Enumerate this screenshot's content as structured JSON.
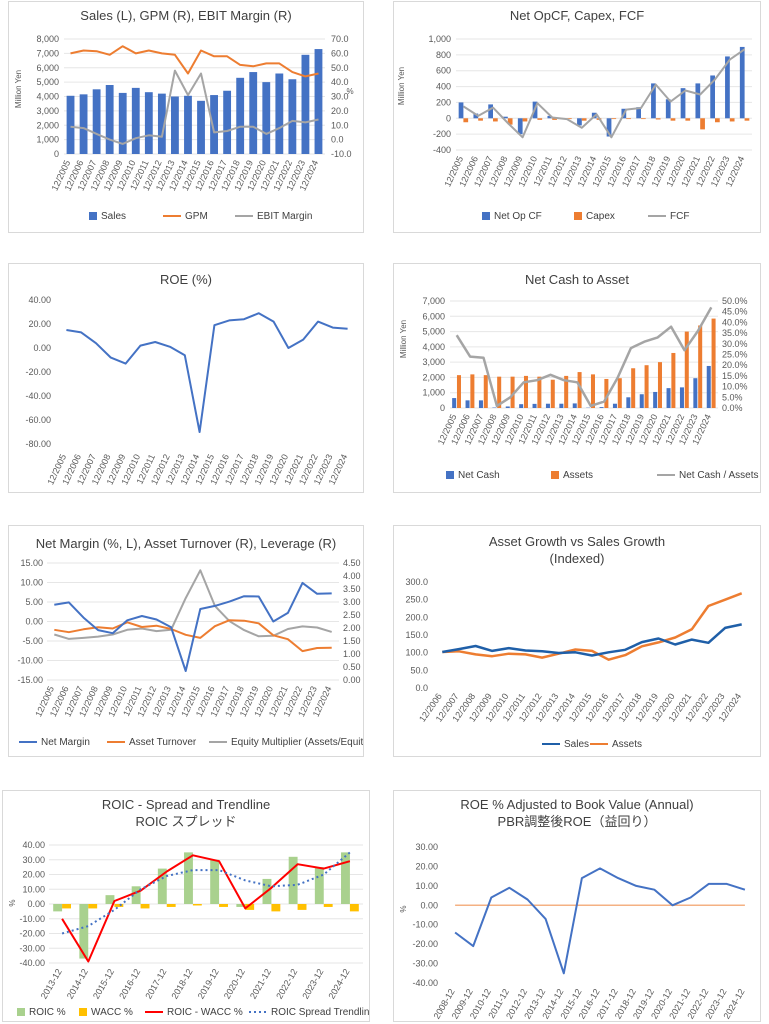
{
  "charts": {
    "sales": {
      "title": "Sales (L), GPM (R), EBIT Margin (R)",
      "ylabel": "Million Yen",
      "y2label": "%",
      "yticks": [
        "0",
        "1,000",
        "2,000",
        "3,000",
        "4,000",
        "5,000",
        "6,000",
        "7,000",
        "8,000"
      ],
      "y2ticks": [
        "-10.0",
        "0.0",
        "10.0",
        "20.0",
        "30.0",
        "40.0",
        "50.0",
        "60.0",
        "70.0"
      ],
      "legend": [
        "Sales",
        "GPM",
        "EBIT Margin"
      ]
    },
    "cf": {
      "title": "Net OpCF, Capex, FCF",
      "ylabel": "Million Yen",
      "yticks": [
        "-400",
        "-200",
        "0",
        "200",
        "400",
        "600",
        "800",
        "1,000"
      ],
      "legend": [
        "Net Op CF",
        "Capex",
        "FCF"
      ]
    },
    "roe": {
      "title": "ROE (%)",
      "yticks": [
        "-80.00",
        "-60.00",
        "-40.00",
        "-20.00",
        "0.00",
        "20.00",
        "40.00"
      ]
    },
    "cash": {
      "title": "Net Cash to Asset",
      "ylabel": "Million Yen",
      "yticks": [
        "0",
        "1,000",
        "2,000",
        "3,000",
        "4,000",
        "5,000",
        "6,000",
        "7,000"
      ],
      "y2ticks": [
        "0.0%",
        "5.0%",
        "10.0%",
        "15.0%",
        "20.0%",
        "25.0%",
        "30.0%",
        "35.0%",
        "40.0%",
        "45.0%",
        "50.0%"
      ],
      "legend": [
        "Net Cash",
        "Assets",
        "Net Cash / Assets"
      ]
    },
    "dupont": {
      "title": "Net Margin (%, L), Asset Turnover (R), Leverage (R)",
      "yticks": [
        "-15.00",
        "-10.00",
        "-5.00",
        "0.00",
        "5.00",
        "10.00",
        "15.00"
      ],
      "y2ticks": [
        "0.00",
        "0.50",
        "1.00",
        "1.50",
        "2.00",
        "2.50",
        "3.00",
        "3.50",
        "4.00",
        "4.50"
      ],
      "legend": [
        "Net Margin",
        "Asset Turnover",
        "Equity Multiplier (Assets/Equity)"
      ]
    },
    "growth": {
      "title": "Asset Growth vs Sales Growth",
      "subtitle": "(Indexed)",
      "yticks": [
        "0.0",
        "50.0",
        "100.0",
        "150.0",
        "200.0",
        "250.0",
        "300.0"
      ],
      "legend": [
        "Sales",
        "Assets"
      ]
    },
    "roic": {
      "title": "ROIC - Spread and Trendline",
      "subtitle": "ROIC スプレッド",
      "ylabel": "%",
      "yticks": [
        "-40.00",
        "-30.00",
        "-20.00",
        "-10.00",
        "0.00",
        "10.00",
        "20.00",
        "30.00",
        "40.00"
      ],
      "legend": [
        "ROIC %",
        "WACC %",
        "ROIC - WACC %",
        "ROIC Spread Trendline"
      ]
    },
    "pbr": {
      "title": "ROE % Adjusted to Book Value (Annual)",
      "subtitle": "PBR調整後ROE（益回り）",
      "ylabel": "%",
      "yticks": [
        "-40.00",
        "-30.00",
        "-20.00",
        "-10.00",
        "0.00",
        "10.00",
        "20.00",
        "30.00"
      ]
    }
  },
  "chart_data": [
    {
      "type": "bar",
      "id": "sales",
      "categories": [
        "12/2005",
        "12/2006",
        "12/2007",
        "12/2008",
        "12/2009",
        "12/2010",
        "12/2011",
        "12/2012",
        "12/2013",
        "12/2014",
        "12/2015",
        "12/2016",
        "12/2017",
        "12/2018",
        "12/2019",
        "12/2020",
        "12/2021",
        "12/2022",
        "12/2023",
        "12/2024"
      ],
      "series": [
        {
          "name": "Sales",
          "axis": "left",
          "kind": "bar",
          "values": [
            4050,
            4150,
            4500,
            4800,
            4250,
            4600,
            4300,
            4200,
            4000,
            4050,
            3700,
            4100,
            4400,
            5300,
            5700,
            5000,
            5600,
            5200,
            6900,
            7300
          ]
        },
        {
          "name": "GPM",
          "axis": "right",
          "kind": "line",
          "values": [
            60,
            62,
            61.5,
            59,
            65,
            60,
            62,
            60,
            59,
            46,
            62,
            58,
            58,
            52,
            51,
            53,
            53,
            47,
            44,
            46
          ]
        },
        {
          "name": "EBIT Margin",
          "axis": "right",
          "kind": "line",
          "values": [
            9,
            8,
            4,
            0,
            -3,
            1,
            3,
            2,
            48,
            31,
            46,
            5,
            6,
            9,
            9,
            4,
            8,
            13,
            12,
            14
          ]
        }
      ],
      "ylim": [
        0,
        8000
      ],
      "y2lim": [
        -10,
        70
      ]
    },
    {
      "type": "bar",
      "id": "cf",
      "categories": [
        "12/2005",
        "12/2006",
        "12/2007",
        "12/2008",
        "12/2009",
        "12/2010",
        "12/2011",
        "12/2012",
        "12/2013",
        "12/2014",
        "12/2015",
        "12/2016",
        "12/2017",
        "12/2018",
        "12/2019",
        "12/2020",
        "12/2021",
        "12/2022",
        "12/2023",
        "12/2024"
      ],
      "series": [
        {
          "name": "Net Op CF",
          "kind": "bar",
          "values": [
            200,
            60,
            175,
            20,
            -200,
            210,
            30,
            0,
            -90,
            70,
            -230,
            120,
            140,
            440,
            240,
            380,
            440,
            540,
            780,
            900
          ]
        },
        {
          "name": "Capex",
          "kind": "bar",
          "values": [
            -50,
            -30,
            -40,
            -80,
            -40,
            -20,
            -20,
            -10,
            -30,
            -20,
            -10,
            -10,
            -10,
            -15,
            -30,
            -30,
            -140,
            -50,
            -40,
            -30
          ]
        },
        {
          "name": "FCF",
          "kind": "line",
          "values": [
            150,
            30,
            135,
            -60,
            -240,
            190,
            10,
            -10,
            -120,
            50,
            -240,
            110,
            130,
            425,
            210,
            350,
            300,
            490,
            740,
            870
          ]
        }
      ],
      "ylim": [
        -400,
        1000
      ]
    },
    {
      "type": "line",
      "id": "roe",
      "categories": [
        "12/2005",
        "12/2006",
        "12/2007",
        "12/2008",
        "12/2009",
        "12/2010",
        "12/2011",
        "12/2012",
        "12/2013",
        "12/2014",
        "12/2015",
        "12/2016",
        "12/2017",
        "12/2018",
        "12/2019",
        "12/2020",
        "12/2021",
        "12/2022",
        "12/2023",
        "12/2024"
      ],
      "series": [
        {
          "name": "ROE",
          "values": [
            15,
            13,
            4,
            -8,
            -13,
            2,
            5,
            1,
            -6,
            -70,
            19,
            23,
            24,
            29,
            22,
            0,
            7,
            22,
            17,
            16
          ]
        }
      ],
      "ylim": [
        -80,
        40
      ]
    },
    {
      "type": "bar",
      "id": "cash",
      "categories": [
        "12/2005",
        "12/2006",
        "12/2007",
        "12/2008",
        "12/2009",
        "12/2010",
        "12/2011",
        "12/2012",
        "12/2013",
        "12/2014",
        "12/2015",
        "12/2016",
        "12/2017",
        "12/2018",
        "12/2019",
        "12/2020",
        "12/2021",
        "12/2022",
        "12/2023",
        "12/2024"
      ],
      "series": [
        {
          "name": "Net Cash",
          "axis": "left",
          "kind": "bar",
          "values": [
            650,
            500,
            500,
            30,
            100,
            250,
            270,
            280,
            280,
            300,
            20,
            60,
            280,
            700,
            900,
            1050,
            1300,
            1350,
            1950,
            2750
          ]
        },
        {
          "name": "Assets",
          "axis": "left",
          "kind": "bar",
          "values": [
            2150,
            2200,
            2150,
            2050,
            2050,
            2100,
            2050,
            1850,
            2100,
            2350,
            2200,
            1900,
            1950,
            2600,
            2800,
            3000,
            3600,
            5000,
            5400,
            5850
          ]
        },
        {
          "name": "Net Cash / Assets",
          "axis": "right",
          "kind": "line",
          "values": [
            34,
            24,
            23.5,
            1,
            5,
            12,
            13,
            15.5,
            13,
            12,
            1,
            3,
            14,
            28,
            31,
            33,
            38,
            27,
            36,
            47
          ]
        }
      ],
      "ylim": [
        0,
        7000
      ],
      "y2lim": [
        0,
        50
      ]
    },
    {
      "type": "line",
      "id": "dupont",
      "categories": [
        "12/2005",
        "12/2006",
        "12/2007",
        "12/2008",
        "12/2009",
        "12/2010",
        "12/2011",
        "12/2012",
        "12/2013",
        "12/2014",
        "12/2015",
        "12/2016",
        "12/2017",
        "12/2018",
        "12/2019",
        "12/2020",
        "12/2021",
        "12/2022",
        "12/2023",
        "12/2024"
      ],
      "series": [
        {
          "name": "Net Margin",
          "axis": "left",
          "values": [
            4.3,
            4.9,
            1,
            -2.2,
            -3,
            0.3,
            1.4,
            0.5,
            -1.5,
            -12.7,
            3.2,
            4,
            5.1,
            6.5,
            6.4,
            0,
            2.2,
            9.9,
            7.1,
            7.2
          ]
        },
        {
          "name": "Asset Turnover",
          "axis": "right",
          "values": [
            1.93,
            1.84,
            1.95,
            2.03,
            1.98,
            2.22,
            2.04,
            2.09,
            1.96,
            1.74,
            1.62,
            2.07,
            2.3,
            2.28,
            2.18,
            1.72,
            1.57,
            1.11,
            1.23,
            1.24
          ]
        },
        {
          "name": "Equity Multiplier (Assets/Equity)",
          "axis": "right",
          "values": [
            1.75,
            1.58,
            1.62,
            1.67,
            1.75,
            1.93,
            1.98,
            1.88,
            1.93,
            3.15,
            4.22,
            2.85,
            2.26,
            1.92,
            1.68,
            1.7,
            1.96,
            2.06,
            2.02,
            1.85
          ]
        }
      ],
      "ylim": [
        -15,
        15
      ],
      "y2lim": [
        0,
        4.5
      ]
    },
    {
      "type": "line",
      "id": "growth",
      "categories": [
        "12/2006",
        "12/2007",
        "12/2008",
        "12/2009",
        "12/2010",
        "12/2011",
        "12/2012",
        "12/2013",
        "12/2014",
        "12/2015",
        "12/2016",
        "12/2017",
        "12/2018",
        "12/2019",
        "12/2020",
        "12/2021",
        "12/2022",
        "12/2023",
        "12/2024"
      ],
      "series": [
        {
          "name": "Sales",
          "values": [
            102,
            110,
            119,
            105,
            113,
            106,
            104,
            99,
            101,
            92,
            101,
            108,
            130,
            140,
            123,
            137,
            128,
            170,
            180
          ]
        },
        {
          "name": "Assets",
          "values": [
            102,
            104,
            95,
            90,
            97,
            95,
            86,
            97,
            109,
            105,
            80,
            93,
            118,
            129,
            143,
            166,
            232,
            250,
            268
          ]
        }
      ],
      "ylim": [
        0,
        300
      ]
    },
    {
      "type": "bar",
      "id": "roic",
      "categories": [
        "2013-12",
        "2014-12",
        "2015-12",
        "2016-12",
        "2017-12",
        "2018-12",
        "2019-12",
        "2020-12",
        "2021-12",
        "2022-12",
        "2023-12",
        "2024-12"
      ],
      "series": [
        {
          "name": "ROIC %",
          "kind": "bar",
          "values": [
            -5,
            -37,
            6,
            12,
            24,
            35,
            30,
            -2,
            17,
            32,
            25,
            35
          ]
        },
        {
          "name": "WACC %",
          "kind": "bar",
          "values": [
            -3,
            -3,
            -2,
            -3,
            -2,
            -1,
            -2,
            -4,
            -5,
            -4,
            -2,
            -5
          ]
        },
        {
          "name": "ROIC - WACC %",
          "kind": "line",
          "values": [
            -10,
            -39,
            2,
            9,
            22,
            33,
            29,
            -3,
            11,
            27,
            24,
            29
          ]
        },
        {
          "name": "ROIC Spread Trendline",
          "kind": "dotted",
          "values": [
            -20,
            -15,
            -4,
            10,
            19,
            23,
            23,
            16,
            12,
            13,
            20,
            35
          ]
        }
      ],
      "ylim": [
        -40,
        40
      ]
    },
    {
      "type": "line",
      "id": "pbr",
      "categories": [
        "2008-12",
        "2009-12",
        "2010-12",
        "2011-12",
        "2012-12",
        "2013-12",
        "2014-12",
        "2015-12",
        "2016-12",
        "2017-12",
        "2018-12",
        "2019-12",
        "2020-12",
        "2021-12",
        "2022-12",
        "2023-12",
        "2024-12"
      ],
      "series": [
        {
          "name": "ROE adjusted",
          "values": [
            -14,
            -21,
            4,
            9,
            3,
            -7,
            -35,
            14,
            19,
            14,
            10,
            8,
            0,
            4,
            11,
            11,
            8
          ]
        },
        {
          "name": "zero",
          "values": [
            0,
            0,
            0,
            0,
            0,
            0,
            0,
            0,
            0,
            0,
            0,
            0,
            0,
            0,
            0,
            0,
            0
          ]
        }
      ],
      "ylim": [
        -40,
        30
      ]
    }
  ]
}
